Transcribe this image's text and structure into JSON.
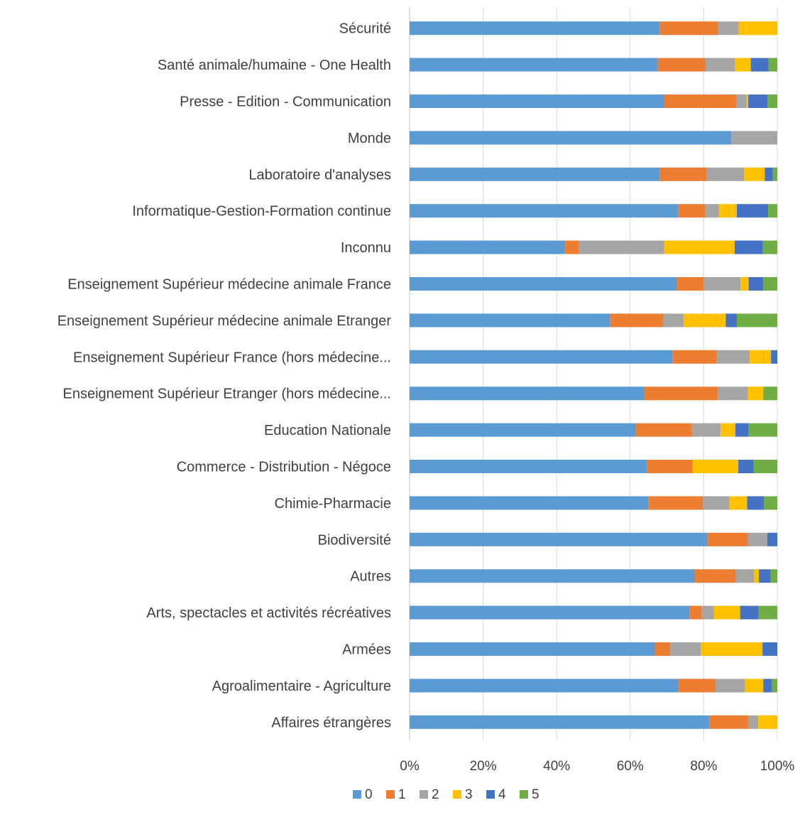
{
  "chart_data": {
    "type": "bar",
    "orientation": "horizontal",
    "stacked": "100%",
    "title": "",
    "xlabel": "",
    "ylabel": "",
    "xlim": [
      0,
      100
    ],
    "x_ticks": [
      "0%",
      "20%",
      "40%",
      "60%",
      "80%",
      "100%"
    ],
    "grid": "vertical",
    "legend_position": "bottom",
    "categories": [
      "Sécurité",
      "Santé animale/humaine - One Health",
      "Presse - Edition - Communication",
      "Monde",
      "Laboratoire d'analyses",
      "Informatique-Gestion-Formation continue",
      "Inconnu",
      "Enseignement Supérieur médecine animale France",
      "Enseignement Supérieur médecine animale Etranger",
      "Enseignement Supérieur France (hors médecine...",
      "Enseignement Supérieur Etranger (hors médecine...",
      "Education Nationale",
      "Commerce - Distribution - Négoce",
      "Chimie-Pharmacie",
      "Biodiversité",
      "Autres",
      "Arts, spectacles et activités récréatives",
      "Armées",
      "Agroalimentaire - Agriculture",
      "Affaires étrangères"
    ],
    "series": [
      {
        "name": "0",
        "color": "#5b9bd5",
        "values": [
          68,
          67.5,
          69.3,
          87.5,
          68,
          73,
          42.3,
          72.7,
          54.5,
          71.5,
          63.8,
          61.5,
          64.5,
          65,
          81,
          77.5,
          76.2,
          66.7,
          73.2,
          81.5
        ]
      },
      {
        "name": "1",
        "color": "#ed7d31",
        "values": [
          16,
          13,
          19.5,
          0,
          12.7,
          7.4,
          3.8,
          7.3,
          14.5,
          12,
          20,
          15.3,
          12.5,
          14.8,
          11,
          11.2,
          3.3,
          4.2,
          10,
          10.7
        ]
      },
      {
        "name": "2",
        "color": "#a5a5a5",
        "values": [
          5.5,
          8,
          2.8,
          12.5,
          10.3,
          3.7,
          23.1,
          10,
          5.5,
          9,
          8.2,
          7.8,
          0,
          7.2,
          5.3,
          5,
          3.3,
          8.3,
          8,
          2.6
        ]
      },
      {
        "name": "3",
        "color": "#ffc000",
        "values": [
          10.5,
          4.3,
          0.5,
          0,
          5.6,
          4.9,
          19.2,
          2.2,
          11.5,
          5.8,
          4.2,
          4,
          12.4,
          4.8,
          0,
          1.3,
          7.1,
          16.8,
          5,
          5.2
        ]
      },
      {
        "name": "4",
        "color": "#4472c4",
        "values": [
          0,
          4.8,
          5.2,
          0,
          2.2,
          8.5,
          7.7,
          4,
          3,
          1.7,
          0,
          3.6,
          4.2,
          4.6,
          2.7,
          3.2,
          5,
          4,
          2.4,
          0
        ]
      },
      {
        "name": "5",
        "color": "#70ad47",
        "values": [
          0,
          2.4,
          2.7,
          0,
          1.2,
          2.5,
          3.9,
          3.8,
          11,
          0,
          3.8,
          7.8,
          6.4,
          3.6,
          0,
          1.8,
          5.1,
          0,
          1.4,
          0
        ]
      }
    ]
  }
}
